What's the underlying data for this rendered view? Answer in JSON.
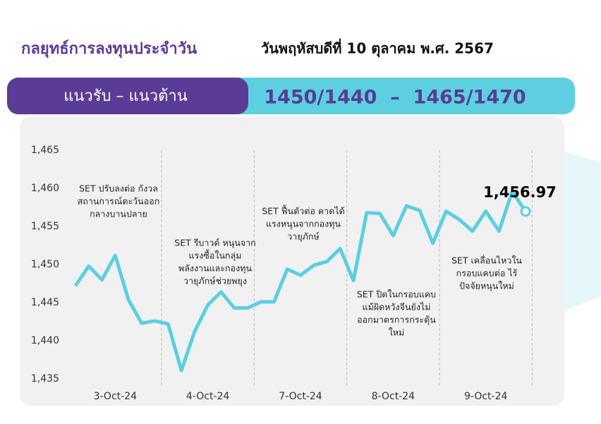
{
  "header": {
    "title": "กลยุทธ์การลงทุนประจำวัน",
    "date": "วันพฤหัสบดีที่ 10 ตุลาคม พ.ศ. 2567"
  },
  "banner": {
    "label": "แนวรับ – แนวต้าน",
    "levels": "1450/1440  –  1465/1470"
  },
  "chart_data": {
    "type": "line",
    "color": "#5ccfe0",
    "categories": [
      null,
      null,
      null,
      "3-Oct-24",
      null,
      null,
      null,
      null,
      null,
      null,
      "4-Oct-24",
      null,
      null,
      null,
      null,
      null,
      null,
      "7-Oct-24",
      null,
      null,
      null,
      null,
      null,
      null,
      "8-Oct-24",
      null,
      null,
      null,
      null,
      null,
      null,
      "9-Oct-24",
      null,
      null,
      null
    ],
    "values": [
      1447.2,
      1449.8,
      1448.0,
      1451.2,
      1445.4,
      1442.3,
      1442.6,
      1442.2,
      1436.1,
      1441.2,
      1444.7,
      1446.4,
      1444.3,
      1444.3,
      1445.1,
      1445.1,
      1449.4,
      1448.6,
      1449.9,
      1450.4,
      1452.1,
      1447.9,
      1456.8,
      1456.7,
      1453.8,
      1457.7,
      1457.1,
      1452.8,
      1457.0,
      1455.9,
      1454.4,
      1457.0,
      1454.4,
      1459.6,
      1456.97
    ],
    "value_labels": [
      null,
      null,
      null,
      null,
      null,
      null,
      null,
      null,
      null,
      null,
      null,
      null,
      null,
      null,
      null,
      null,
      null,
      null,
      null,
      null,
      null,
      null,
      null,
      null,
      null,
      null,
      null,
      null,
      null,
      null,
      null,
      null,
      null,
      null,
      "1,456.97"
    ],
    "ylim": [
      1435,
      1465
    ],
    "yticks": [
      {
        "value": 1435,
        "label": "1,435"
      },
      {
        "value": 1440,
        "label": "1,440"
      },
      {
        "value": 1445,
        "label": "1,445"
      },
      {
        "value": 1450,
        "label": "1,450"
      },
      {
        "value": 1455,
        "label": "1,455"
      },
      {
        "value": 1460,
        "label": "1,460"
      },
      {
        "value": 1465,
        "label": "1,465"
      }
    ],
    "annotations": [
      [
        "SET ปรับลงต่อ กังวล",
        "สถานการณ์ตะวันออก",
        "กลางบานปลาย"
      ],
      [
        "SET รีบาวด์ หนุนจาก",
        "แรงซื้อในกลุ่ม",
        "พลังงานและกองทุน",
        "วายุภักษ์ช่วยพยุง"
      ],
      [
        "SET ฟื้นตัวต่อ คาดได้",
        "แรงหนุนจากกองทุน",
        "วายุภักษ์"
      ],
      [
        "SET ปิดในกรอบแคบ",
        "แม้ผิดหวังจีนยังไม่",
        "ออกมาตรการกระตุ้น",
        "ใหม่"
      ],
      [
        "SET เคลื่อนไหวใน",
        "กรอบแคบต่อ ไร้",
        "ปัจจัยหนุนใหม่"
      ]
    ]
  }
}
